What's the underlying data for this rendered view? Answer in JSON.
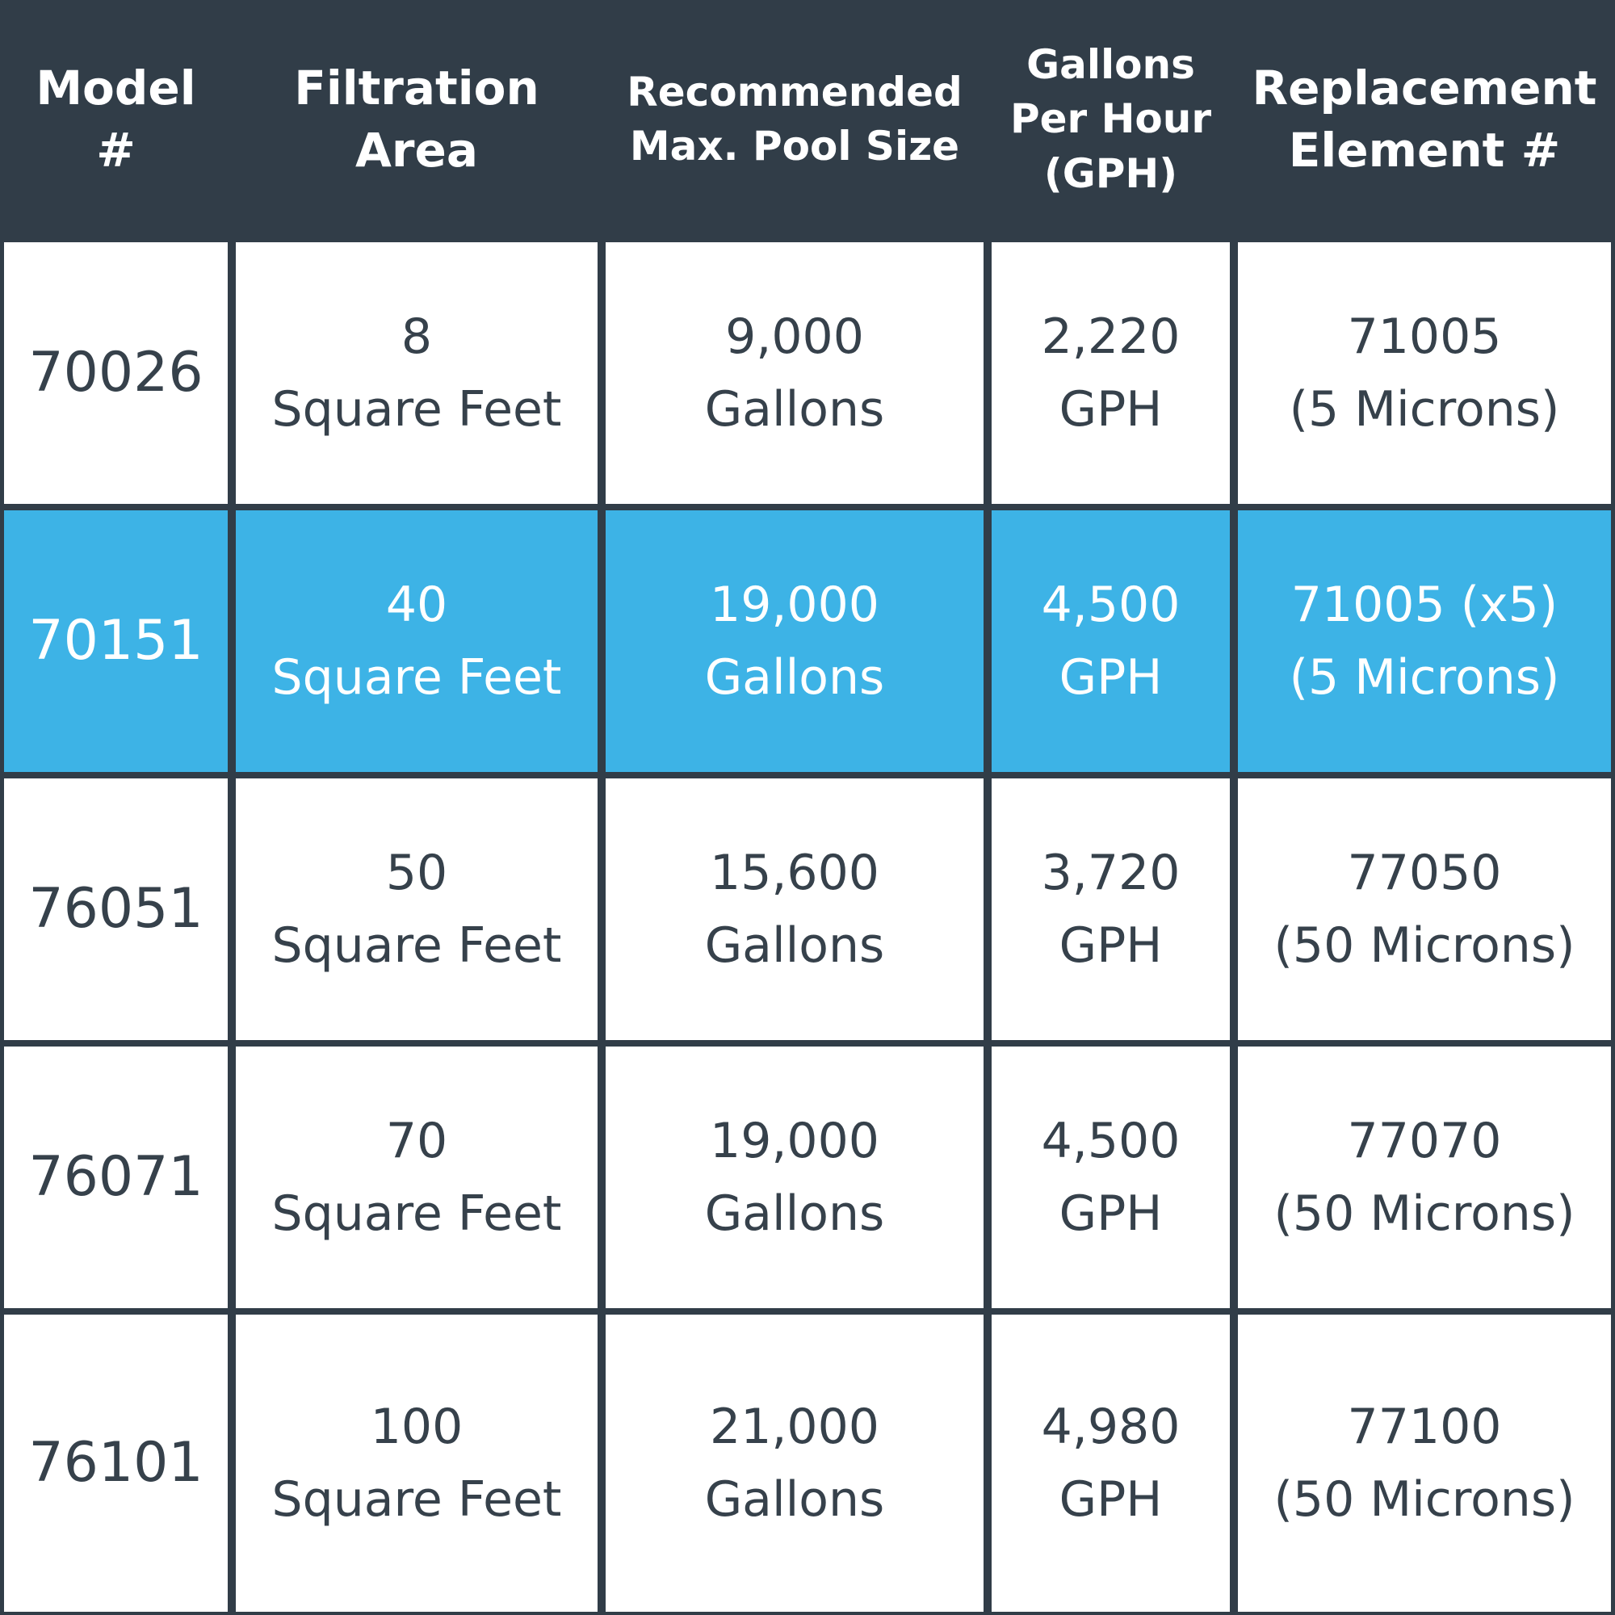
{
  "headers": [
    "Model\n#",
    "Filtration\nArea",
    "Recommended\nMax. Pool Size",
    "Gallons\nPer Hour\n(GPH)",
    "Replacement\nElement #"
  ],
  "rows": [
    {
      "model": "70026",
      "area_value": "8",
      "area_unit": "Square Feet",
      "pool_value": "9,000",
      "pool_unit": "Gallons",
      "gph_value": "2,220",
      "gph_unit": "GPH",
      "element_value": "71005",
      "element_note": "(5 Microns)",
      "highlighted": false
    },
    {
      "model": "70151",
      "area_value": "40",
      "area_unit": "Square Feet",
      "pool_value": "19,000",
      "pool_unit": "Gallons",
      "gph_value": "4,500",
      "gph_unit": "GPH",
      "element_value": "71005 (x5)",
      "element_note": "(5 Microns)",
      "highlighted": true
    },
    {
      "model": "76051",
      "area_value": "50",
      "area_unit": "Square Feet",
      "pool_value": "15,600",
      "pool_unit": "Gallons",
      "gph_value": "3,720",
      "gph_unit": "GPH",
      "element_value": "77050",
      "element_note": "(50 Microns)",
      "highlighted": false
    },
    {
      "model": "76071",
      "area_value": "70",
      "area_unit": "Square Feet",
      "pool_value": "19,000",
      "pool_unit": "Gallons",
      "gph_value": "4,500",
      "gph_unit": "GPH",
      "element_value": "77070",
      "element_note": "(50 Microns)",
      "highlighted": false
    },
    {
      "model": "76101",
      "area_value": "100",
      "area_unit": "Square Feet",
      "pool_value": "21,000",
      "pool_unit": "Gallons",
      "gph_value": "4,980",
      "gph_unit": "GPH",
      "element_value": "77100",
      "element_note": "(50 Microns)",
      "highlighted": false
    }
  ],
  "colors": {
    "header_bg": "#313d48",
    "highlight_bg": "#3db3e6",
    "cell_bg": "#ffffff",
    "cell_text": "#36414b"
  }
}
